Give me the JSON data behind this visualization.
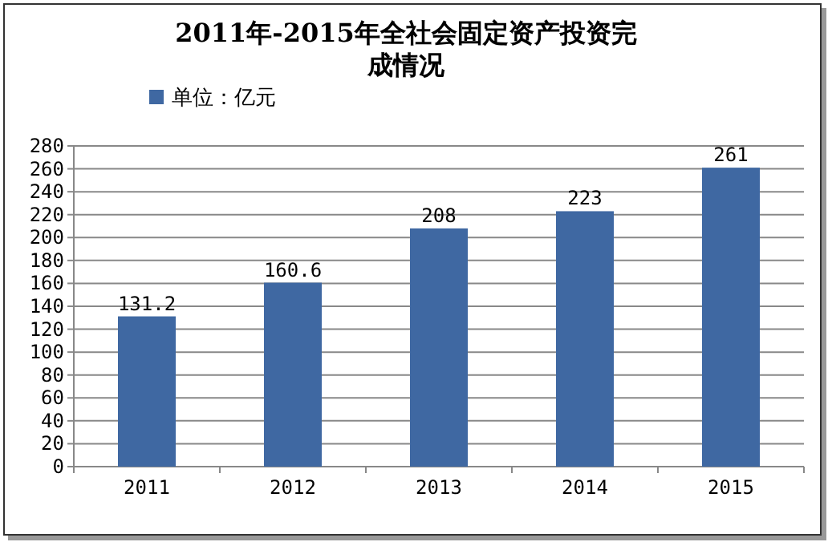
{
  "chart_data": {
    "type": "bar",
    "title": "2011年-2015年全社会固定资产投资完成情况",
    "categories": [
      "2011",
      "2012",
      "2013",
      "2014",
      "2015"
    ],
    "series": [
      {
        "name": "单位：亿元",
        "color": "#3f68a2",
        "values": [
          131.2,
          160.6,
          208,
          223,
          261
        ]
      }
    ],
    "ylim": [
      0,
      280
    ],
    "yticks": [
      0,
      20,
      40,
      60,
      80,
      100,
      120,
      140,
      160,
      180,
      200,
      220,
      240,
      260,
      280
    ],
    "grid": "y",
    "legend": "top left",
    "data_labels": true
  }
}
